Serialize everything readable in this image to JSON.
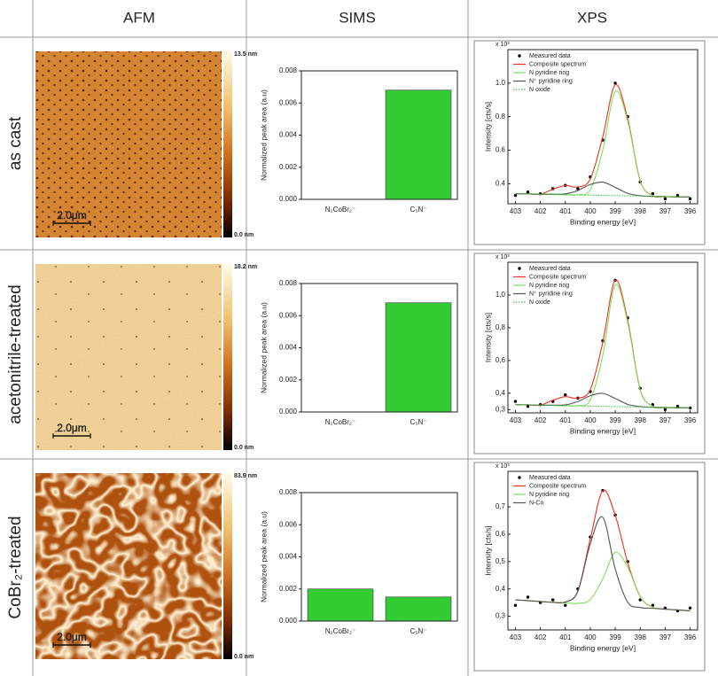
{
  "columns": [
    "AFM",
    "SIMS",
    "XPS"
  ],
  "rows": [
    {
      "label": "as cast",
      "afm": {
        "max_label": "13.5 nm",
        "min_label": "0.0 nm",
        "scale_label": "2.0μm"
      },
      "sims": {
        "type": "bar",
        "ylabel": "Normalized peak area (a.u)",
        "categories": [
          "N₂CoBr₂⁻",
          "C₅N⁻"
        ],
        "values": [
          0,
          0.0068
        ],
        "color": "#33cc33",
        "ylim": [
          0,
          0.008
        ],
        "yticks": [
          {
            "value": 0,
            "label": "0.000"
          },
          {
            "value": 0.002,
            "label": "0.002"
          },
          {
            "value": 0.004,
            "label": "0.004"
          },
          {
            "value": 0.006,
            "label": "0.006"
          },
          {
            "value": 0.008,
            "label": "0.008"
          }
        ]
      },
      "xps": {
        "type": "line",
        "xlabel": "Binding energy [eV]",
        "ylabel": "Intensity [cts/s]",
        "multiplier": "x 10³",
        "x": [
          403,
          402.5,
          402,
          401.5,
          401,
          400.5,
          400,
          399.5,
          399,
          398.5,
          398,
          397.5,
          397,
          396.5,
          396
        ],
        "xlim": [
          403.3,
          395.7
        ],
        "xticks": [
          403,
          402,
          401,
          400,
          399,
          398,
          397,
          396
        ],
        "ylim": [
          0.28,
          1.2
        ],
        "yticks": [
          0.4,
          0.6,
          0.8,
          {
            "value": 1,
            "label": "1.0"
          }
        ],
        "series": [
          {
            "name": "Measured data",
            "color": "#000000",
            "mode": "markers",
            "values": [
              0.33,
              0.35,
              0.34,
              0.37,
              0.39,
              0.37,
              0.44,
              0.66,
              1.0,
              0.8,
              0.41,
              0.34,
              0.31,
              0.33,
              0.31
            ]
          },
          {
            "name": "Composite spectrum",
            "color": "#e8331c",
            "mode": "lines",
            "values": [
              0.34,
              0.339,
              0.337,
              0.367,
              0.389,
              0.38,
              0.428,
              0.68,
              0.99,
              0.787,
              0.417,
              0.329,
              0.323,
              0.321,
              0.32
            ]
          },
          {
            "name": "N pyridine ring",
            "color": "#7ee05a",
            "mode": "lines",
            "values": [
              0.34,
              0.339,
              0.337,
              0.336,
              0.334,
              0.334,
              0.364,
              0.601,
              0.95,
              0.772,
              0.415,
              0.329,
              0.323,
              0.321,
              0.32
            ]
          },
          {
            "name": "N⁺ pyridine ring",
            "color": "#555555",
            "mode": "lines",
            "values": [
              0.34,
              0.339,
              0.337,
              0.337,
              0.339,
              0.359,
              0.395,
              0.409,
              0.378,
              0.342,
              0.328,
              0.324,
              0.323,
              0.321,
              0.32
            ]
          },
          {
            "name": "N oxide",
            "color": "#3cc83c",
            "mode": "lines",
            "dashed": true,
            "values": [
              0.34,
              0.339,
              0.337,
              0.336,
              0.334,
              0.333,
              0.331,
              0.33,
              0.329,
              0.327,
              0.326,
              0.324,
              0.323,
              0.321,
              0.32
            ]
          }
        ]
      }
    },
    {
      "label": "acetonitrile-treated",
      "afm": {
        "max_label": "18.2 nm",
        "min_label": "0.0 nm",
        "scale_label": "2.0μm"
      },
      "sims": {
        "type": "bar",
        "ylabel": "Normalized peak area (a.u)",
        "categories": [
          "N₂CoBr₂⁻",
          "C₅N⁻"
        ],
        "values": [
          0,
          0.0068
        ],
        "color": "#33cc33",
        "ylim": [
          0,
          0.008
        ],
        "yticks": [
          {
            "value": 0,
            "label": "0.000"
          },
          {
            "value": 0.002,
            "label": "0.002"
          },
          {
            "value": 0.004,
            "label": "0.004"
          },
          {
            "value": 0.006,
            "label": "0.006"
          },
          {
            "value": 0.008,
            "label": "0.008"
          }
        ]
      },
      "xps": {
        "type": "line",
        "xlabel": "Binding energy [eV]",
        "ylabel": "Intensity [cts/s]",
        "multiplier": "x 10³",
        "x": [
          403,
          402.5,
          402,
          401.5,
          401,
          400.5,
          400,
          399.5,
          399,
          398.5,
          398,
          397.5,
          397,
          396.5,
          396
        ],
        "xlim": [
          403.3,
          395.7
        ],
        "xticks": [
          403,
          402,
          401,
          400,
          399,
          398,
          397,
          396
        ],
        "ylim": [
          0.28,
          1.2
        ],
        "yticks": [
          {
            "value": 0.3,
            "label": "0,3"
          },
          {
            "value": 0.4,
            "label": "0,4"
          },
          {
            "value": 0.6,
            "label": "0,6"
          },
          {
            "value": 0.8,
            "label": "0,8"
          },
          {
            "value": 1,
            "label": "1,0"
          }
        ],
        "series": [
          {
            "name": "Measured data",
            "color": "#000000",
            "mode": "markers",
            "values": [
              0.35,
              0.32,
              0.33,
              0.35,
              0.39,
              0.37,
              0.41,
              0.72,
              1.09,
              0.86,
              0.43,
              0.33,
              0.3,
              0.32,
              0.31
            ]
          },
          {
            "name": "Composite spectrum",
            "color": "#e8331c",
            "mode": "lines",
            "values": [
              0.33,
              0.329,
              0.327,
              0.357,
              0.379,
              0.37,
              0.423,
              0.711,
              1.09,
              0.844,
              0.421,
              0.32,
              0.313,
              0.311,
              0.31
            ]
          },
          {
            "name": "N pyridine ring",
            "color": "#7ee05a",
            "mode": "lines",
            "values": [
              0.33,
              0.329,
              0.327,
              0.326,
              0.324,
              0.324,
              0.359,
              0.632,
              1.061,
              0.829,
              0.419,
              0.32,
              0.313,
              0.311,
              0.31
            ]
          },
          {
            "name": "N⁺ pyridine ring",
            "color": "#555555",
            "mode": "lines",
            "values": [
              0.33,
              0.329,
              0.327,
              0.327,
              0.329,
              0.349,
              0.385,
              0.399,
              0.368,
              0.332,
              0.318,
              0.314,
              0.313,
              0.311,
              0.31
            ]
          },
          {
            "name": "N oxide",
            "color": "#3cc83c",
            "mode": "lines",
            "dashed": true,
            "values": [
              0.33,
              0.329,
              0.327,
              0.326,
              0.324,
              0.323,
              0.321,
              0.32,
              0.319,
              0.317,
              0.316,
              0.314,
              0.313,
              0.311,
              0.31
            ]
          }
        ]
      }
    },
    {
      "label": "CoBr₂-treated",
      "afm": {
        "max_label": "83.9 nm",
        "min_label": "0.0 nm",
        "scale_label": "2.0μm"
      },
      "sims": {
        "type": "bar",
        "ylabel": "Normalized peak area (a.u)",
        "categories": [
          "N₂CoBr₂⁻",
          "C₅N⁻"
        ],
        "values": [
          0.002,
          0.0015
        ],
        "color": "#33cc33",
        "ylim": [
          0,
          0.008
        ],
        "yticks": [
          {
            "value": 0,
            "label": "0.000"
          },
          {
            "value": 0.002,
            "label": "0.002"
          },
          {
            "value": 0.004,
            "label": "0.004"
          },
          {
            "value": 0.006,
            "label": "0.006"
          },
          {
            "value": 0.008,
            "label": "0.008"
          }
        ]
      },
      "xps": {
        "type": "line",
        "xlabel": "Binding energy [eV]",
        "ylabel": "Intensity [cts/s]",
        "multiplier": "x 10³",
        "x": [
          403,
          402.5,
          402,
          401.5,
          401,
          400.5,
          400,
          399.5,
          399,
          398.5,
          398,
          397.5,
          397,
          396.5,
          396
        ],
        "xlim": [
          403.3,
          395.7
        ],
        "xticks": [
          403,
          402,
          401,
          400,
          399,
          398,
          397,
          396
        ],
        "ylim": [
          0.25,
          0.83
        ],
        "yticks": [
          {
            "value": 0.3,
            "label": "0,3"
          },
          {
            "value": 0.4,
            "label": "0,4"
          },
          {
            "value": 0.5,
            "label": "0,5"
          },
          {
            "value": 0.6,
            "label": "0,6"
          },
          {
            "value": 0.7,
            "label": "0,7"
          }
        ],
        "series": [
          {
            "name": "Measured data",
            "color": "#000000",
            "mode": "markers",
            "values": [
              0.34,
              0.37,
              0.35,
              0.36,
              0.34,
              0.4,
              0.59,
              0.76,
              0.67,
              0.5,
              0.36,
              0.34,
              0.33,
              0.32,
              0.33
            ]
          },
          {
            "name": "Composite spectrum",
            "color": "#e8331c",
            "mode": "lines",
            "values": [
              0.36,
              0.357,
              0.354,
              0.351,
              0.352,
              0.392,
              0.583,
              0.759,
              0.669,
              0.496,
              0.372,
              0.333,
              0.326,
              0.323,
              0.32
            ]
          },
          {
            "name": "N pyridine ring",
            "color": "#7ee05a",
            "mode": "lines",
            "values": [
              0.36,
              0.357,
              0.354,
              0.351,
              0.349,
              0.347,
              0.361,
              0.437,
              0.533,
              0.479,
              0.371,
              0.333,
              0.326,
              0.323,
              0.32
            ]
          },
          {
            "name": "N-Co",
            "color": "#555555",
            "mode": "lines",
            "values": [
              0.36,
              0.357,
              0.354,
              0.351,
              0.352,
              0.391,
              0.565,
              0.662,
              0.473,
              0.351,
              0.332,
              0.329,
              0.326,
              0.323,
              0.32
            ]
          }
        ]
      }
    }
  ]
}
